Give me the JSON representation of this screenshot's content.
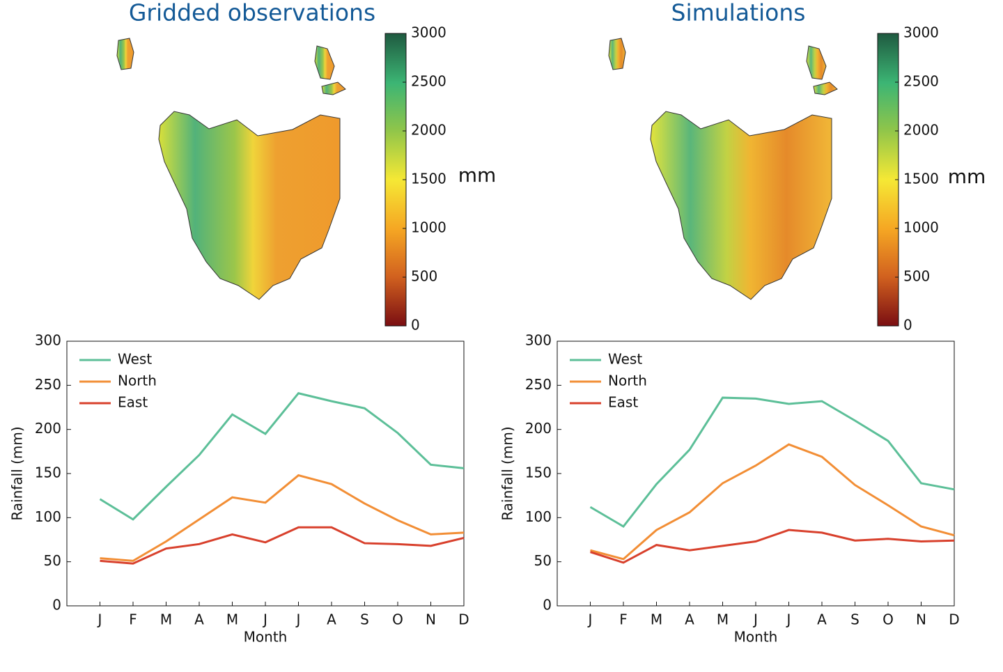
{
  "maps": [
    {
      "title": "Gridded observations",
      "colorbar": {
        "lim": [
          0,
          3000
        ],
        "ticks": [
          0,
          500,
          1000,
          1500,
          2000,
          2500,
          3000
        ],
        "unit": "mm"
      }
    },
    {
      "title": "Simulations",
      "colorbar": {
        "lim": [
          0,
          3000
        ],
        "ticks": [
          0,
          500,
          1000,
          1500,
          2000,
          2500,
          3000
        ],
        "unit": "mm"
      }
    }
  ],
  "chart_data": [
    {
      "type": "line",
      "xlabel": "Month",
      "ylabel": "Rainfall (mm)",
      "categories": [
        "J",
        "F",
        "M",
        "A",
        "M",
        "J",
        "J",
        "A",
        "S",
        "O",
        "N",
        "D"
      ],
      "ylim": [
        0,
        300
      ],
      "yticks": [
        0,
        50,
        100,
        150,
        200,
        250,
        300
      ],
      "legend": "upper-left",
      "series": [
        {
          "name": "West",
          "color": "#5cbf98",
          "values": [
            121,
            98,
            135,
            171,
            217,
            195,
            241,
            232,
            224,
            196,
            160,
            156
          ]
        },
        {
          "name": "North",
          "color": "#f28e35",
          "values": [
            54,
            51,
            73,
            98,
            123,
            117,
            148,
            138,
            116,
            97,
            81,
            83
          ]
        },
        {
          "name": "East",
          "color": "#d8402c",
          "values": [
            51,
            48,
            65,
            70,
            81,
            72,
            89,
            89,
            71,
            70,
            68,
            77
          ]
        }
      ]
    },
    {
      "type": "line",
      "xlabel": "Month",
      "ylabel": "Rainfall (mm)",
      "categories": [
        "J",
        "F",
        "M",
        "A",
        "M",
        "J",
        "J",
        "A",
        "S",
        "O",
        "N",
        "D"
      ],
      "ylim": [
        0,
        300
      ],
      "yticks": [
        0,
        50,
        100,
        150,
        200,
        250,
        300
      ],
      "legend": "upper-left",
      "series": [
        {
          "name": "West",
          "color": "#5cbf98",
          "values": [
            112,
            90,
            138,
            177,
            236,
            235,
            229,
            232,
            210,
            187,
            139,
            132
          ]
        },
        {
          "name": "North",
          "color": "#f28e35",
          "values": [
            63,
            53,
            86,
            106,
            139,
            159,
            183,
            169,
            137,
            114,
            90,
            80
          ]
        },
        {
          "name": "East",
          "color": "#d8402c",
          "values": [
            61,
            49,
            69,
            63,
            68,
            73,
            86,
            83,
            74,
            76,
            73,
            74
          ]
        }
      ]
    }
  ]
}
